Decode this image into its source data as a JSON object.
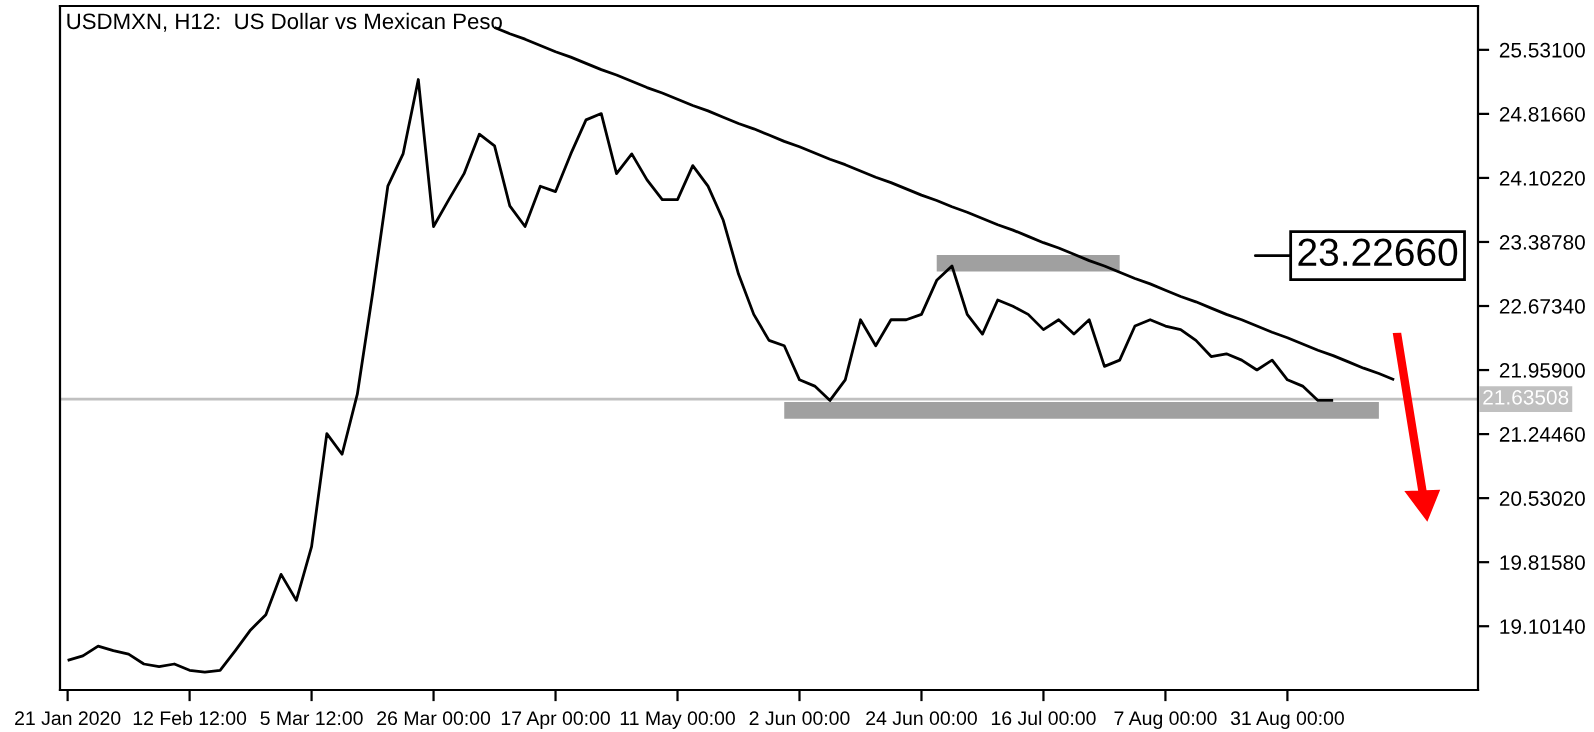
{
  "chart_data": {
    "type": "line",
    "title": "USDMXN, H12:  US Dollar vs Mexican Peso",
    "categories": [
      "21 Jan 2020",
      null,
      null,
      null,
      null,
      null,
      null,
      null,
      "12 Feb 12:00",
      null,
      null,
      null,
      null,
      null,
      null,
      null,
      "5 Mar 12:00",
      null,
      null,
      null,
      null,
      null,
      null,
      null,
      "26 Mar 00:00",
      null,
      null,
      null,
      null,
      null,
      null,
      null,
      "17 Apr 00:00",
      null,
      null,
      null,
      null,
      null,
      null,
      null,
      "11 May 00:00",
      null,
      null,
      null,
      null,
      null,
      null,
      null,
      "2 Jun 00:00",
      null,
      null,
      null,
      null,
      null,
      null,
      null,
      "24 Jun 00:00",
      null,
      null,
      null,
      null,
      null,
      null,
      null,
      "16 Jul 00:00",
      null,
      null,
      null,
      null,
      null,
      null,
      null,
      "7 Aug 00:00",
      null,
      null,
      null,
      null,
      null,
      null,
      null,
      "31 Aug 00:00",
      null,
      null,
      null,
      null,
      null,
      null,
      null,
      null,
      null,
      null,
      null,
      null
    ],
    "series": [
      {
        "color": "#000000",
        "values": [
          18.72,
          18.77,
          18.88,
          18.83,
          18.79,
          18.68,
          18.65,
          18.68,
          18.61,
          18.59,
          18.61,
          18.83,
          19.06,
          19.23,
          19.68,
          19.39,
          19.99,
          21.25,
          21.02,
          21.69,
          22.81,
          24.01,
          24.37,
          25.2,
          23.56,
          23.86,
          24.15,
          24.59,
          24.46,
          23.79,
          23.56,
          24.01,
          23.95,
          24.37,
          24.75,
          24.82,
          24.15,
          24.37,
          24.08,
          23.86,
          23.86,
          24.24,
          24.01,
          23.63,
          23.03,
          22.58,
          22.29,
          22.23,
          21.85,
          21.78,
          21.62,
          21.85,
          22.52,
          22.23,
          22.52,
          22.52,
          22.58,
          22.96,
          23.12,
          22.58,
          22.36,
          22.74,
          22.67,
          22.58,
          22.41,
          22.52,
          22.36,
          22.52,
          22.0,
          22.07,
          22.45,
          22.52,
          22.45,
          22.41,
          22.29,
          22.11,
          22.14,
          22.07,
          21.96,
          22.07,
          21.85,
          21.78,
          21.62,
          21.62,
          null,
          null,
          null,
          null,
          null,
          null,
          null,
          null,
          null
        ]
      },
      {
        "color": "#000000",
        "values": [
          null,
          null,
          null,
          null,
          null,
          null,
          null,
          null,
          null,
          null,
          null,
          null,
          null,
          null,
          null,
          null,
          null,
          null,
          null,
          null,
          null,
          null,
          null,
          null,
          null,
          null,
          null,
          null,
          25.78,
          25.71,
          25.65,
          25.58,
          25.51,
          25.45,
          25.38,
          25.31,
          25.25,
          25.18,
          25.11,
          25.05,
          24.98,
          24.91,
          24.85,
          24.78,
          24.71,
          24.65,
          24.58,
          24.51,
          24.45,
          24.38,
          24.31,
          24.25,
          24.18,
          24.11,
          24.05,
          23.98,
          23.91,
          23.85,
          23.78,
          23.72,
          23.65,
          23.58,
          23.52,
          23.45,
          23.38,
          23.32,
          23.25,
          23.18,
          23.12,
          23.05,
          22.98,
          22.92,
          22.85,
          22.78,
          22.72,
          22.65,
          22.58,
          22.52,
          22.45,
          22.38,
          22.32,
          22.25,
          22.18,
          22.12,
          22.05,
          21.98,
          21.92,
          21.85,
          null,
          null,
          null,
          null,
          null
        ]
      },
      {
        "color": "#a0a0a0",
        "values": [
          null,
          null,
          null,
          null,
          null,
          null,
          null,
          null,
          null,
          null,
          null,
          null,
          null,
          null,
          null,
          null,
          null,
          null,
          null,
          null,
          null,
          null,
          null,
          null,
          null,
          null,
          null,
          null,
          null,
          null,
          null,
          null,
          null,
          null,
          null,
          null,
          null,
          null,
          null,
          null,
          null,
          null,
          null,
          null,
          null,
          null,
          null,
          null,
          null,
          null,
          null,
          null,
          null,
          null,
          null,
          null,
          null,
          23.15,
          23.15,
          23.15,
          23.15,
          23.15,
          23.15,
          23.15,
          23.15,
          23.15,
          23.15,
          23.15,
          23.15,
          23.15,
          null,
          null,
          null,
          null,
          null,
          null,
          null,
          null,
          null,
          null,
          null,
          null,
          null,
          null,
          null,
          null,
          null,
          null,
          null,
          null,
          null,
          null,
          null
        ]
      },
      {
        "color": "#a0a0a0",
        "values": [
          null,
          null,
          null,
          null,
          null,
          null,
          null,
          null,
          null,
          null,
          null,
          null,
          null,
          null,
          null,
          null,
          null,
          null,
          null,
          null,
          null,
          null,
          null,
          null,
          null,
          null,
          null,
          null,
          null,
          null,
          null,
          null,
          null,
          null,
          null,
          null,
          null,
          null,
          null,
          null,
          null,
          null,
          null,
          null,
          null,
          null,
          null,
          21.51,
          21.51,
          21.51,
          21.51,
          21.51,
          21.51,
          21.51,
          21.51,
          21.51,
          21.51,
          21.51,
          21.51,
          21.51,
          21.51,
          21.51,
          21.51,
          21.51,
          21.51,
          21.51,
          21.51,
          21.51,
          21.51,
          21.51,
          21.51,
          21.51,
          21.51,
          21.51,
          21.51,
          21.51,
          21.51,
          21.51,
          21.51,
          21.51,
          21.51,
          21.51,
          21.51,
          21.51,
          21.51,
          21.51,
          21.51,
          null,
          null,
          null,
          null,
          null,
          null
        ]
      }
    ],
    "ylim": [
      18.39,
      26.02
    ],
    "yticks": [
      {
        "value": 25.531,
        "label": "25.53100"
      },
      {
        "value": 24.8166,
        "label": "24.81660"
      },
      {
        "value": 24.1022,
        "label": "24.10220"
      },
      {
        "value": 23.3878,
        "label": "23.38780"
      },
      {
        "value": 22.6734,
        "label": "22.67340"
      },
      {
        "value": 21.959,
        "label": "21.95900"
      },
      {
        "value": 21.2446,
        "label": "21.24460"
      },
      {
        "value": 20.5302,
        "label": "20.53020"
      },
      {
        "value": 19.8158,
        "label": "19.81580"
      },
      {
        "value": 19.1014,
        "label": "19.10140"
      }
    ],
    "ref_lines": [
      {
        "axis": "y",
        "value": 21.63508,
        "label": "21.63508",
        "color": "#c0c0c0"
      }
    ],
    "annotations": [
      "23.22660"
    ],
    "grid": false,
    "legend": false,
    "marker": "none",
    "line_style": "solid"
  }
}
